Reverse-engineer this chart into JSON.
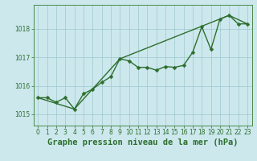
{
  "title": "Graphe pression niveau de la mer (hPa)",
  "background_color": "#cce8ed",
  "plot_bg_color": "#cce8ed",
  "line_color": "#2d6e2d",
  "grid_color": "#9dc8cf",
  "border_color": "#4a8a4a",
  "xlim": [
    -0.5,
    23.5
  ],
  "ylim": [
    1014.6,
    1018.85
  ],
  "yticks": [
    1015,
    1016,
    1017,
    1018
  ],
  "xticks": [
    0,
    1,
    2,
    3,
    4,
    5,
    6,
    7,
    8,
    9,
    10,
    11,
    12,
    13,
    14,
    15,
    16,
    17,
    18,
    19,
    20,
    21,
    22,
    23
  ],
  "series1_x": [
    0,
    1,
    2,
    3,
    4,
    5,
    6,
    7,
    8,
    9,
    10,
    11,
    12,
    13,
    14,
    15,
    16,
    17,
    18,
    19,
    20,
    21,
    22,
    23
  ],
  "series1_y": [
    1015.58,
    1015.58,
    1015.42,
    1015.58,
    1015.18,
    1015.72,
    1015.88,
    1016.12,
    1016.32,
    1016.95,
    1016.88,
    1016.65,
    1016.65,
    1016.55,
    1016.68,
    1016.65,
    1016.72,
    1017.18,
    1018.08,
    1017.28,
    1018.35,
    1018.48,
    1018.18,
    1018.18
  ],
  "series2_x": [
    0,
    4,
    9,
    21,
    23
  ],
  "series2_y": [
    1015.58,
    1015.18,
    1016.95,
    1018.48,
    1018.18
  ],
  "marker_size": 2.5,
  "linewidth1": 1.0,
  "linewidth2": 1.0,
  "title_fontsize": 7.5,
  "tick_fontsize": 5.5,
  "title_fontweight": "bold"
}
